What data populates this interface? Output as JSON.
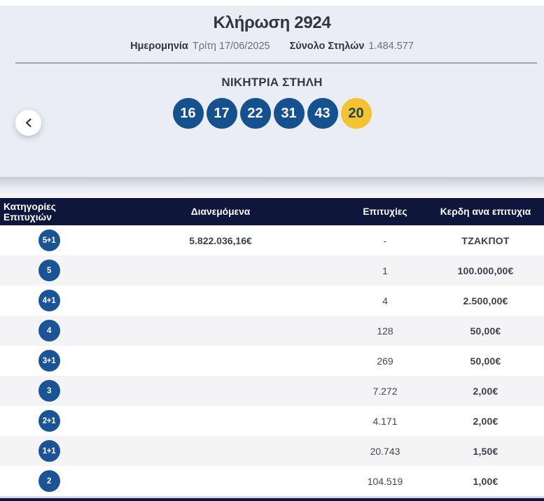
{
  "header": {
    "title": "Κλήρωση 2924",
    "date_label": "Ημερομηνία",
    "date_value": "Τρίτη 17/06/2025",
    "total_columns_label": "Σύνολο Στηλών",
    "total_columns_value": "1.484.577"
  },
  "winning_section": {
    "title": "ΝΙΚΗΤΡΙΑ ΣΤΗΛΗ",
    "numbers": [
      "16",
      "17",
      "22",
      "31",
      "43"
    ],
    "bonus_number": "20"
  },
  "carousel": {
    "prev_icon": "chevron-left"
  },
  "results_table": {
    "headers": {
      "category": "Κατηγορίες Επιτυχιών",
      "distributed": "Διανεμόμενα",
      "winners": "Επιτυχίες",
      "prize": "Κερδη ανα επιτυχια"
    },
    "rows": [
      {
        "category": "5+1",
        "distributed": "5.822.036,16€",
        "winners": "-",
        "prize": "ΤΖΑΚΠΟΤ"
      },
      {
        "category": "5",
        "distributed": "",
        "winners": "1",
        "prize": "100.000,00€"
      },
      {
        "category": "4+1",
        "distributed": "",
        "winners": "4",
        "prize": "2.500,00€"
      },
      {
        "category": "4",
        "distributed": "",
        "winners": "128",
        "prize": "50,00€"
      },
      {
        "category": "3+1",
        "distributed": "",
        "winners": "269",
        "prize": "50,00€"
      },
      {
        "category": "3",
        "distributed": "",
        "winners": "7.272",
        "prize": "2,00€"
      },
      {
        "category": "2+1",
        "distributed": "",
        "winners": "4.171",
        "prize": "2,00€"
      },
      {
        "category": "1+1",
        "distributed": "",
        "winners": "20.743",
        "prize": "1,50€"
      },
      {
        "category": "2",
        "distributed": "",
        "winners": "104.519",
        "prize": "1,00€"
      }
    ]
  },
  "colors": {
    "number_ball_bg": "#15508f",
    "bonus_ball_bg": "#f5c233",
    "badge_bg": "#1a5496",
    "table_header_bg": "#0e163b",
    "row_alt_bg": "#f4f4f6",
    "section_bg": "#ebedf4"
  }
}
